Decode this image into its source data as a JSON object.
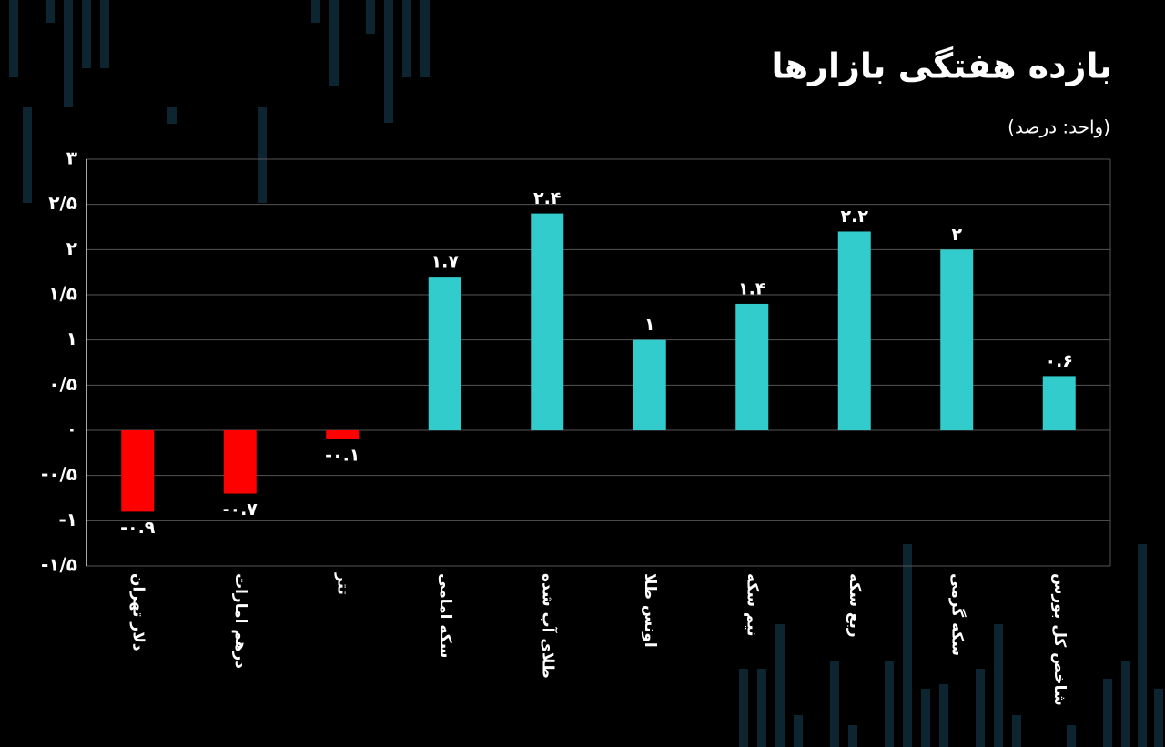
{
  "chart_data": {
    "type": "bar",
    "title": "بازده هفتگی بازارها",
    "subtitle": "(واحد: درصد)",
    "categories": [
      "دلار تهران",
      "درهم امارات",
      "تتر",
      "سکه امامی",
      "طلای آب شده",
      "اونس طلا",
      "نیم سکه",
      "ربع سکه",
      "سکه گرمی",
      "شاخص کل بورس"
    ],
    "values": [
      -0.9,
      -0.7,
      -0.1,
      1.7,
      2.4,
      1,
      1.4,
      2.2,
      2,
      0.6
    ],
    "value_labels": [
      "-۰.۹",
      "-۰.۷",
      "-۰.۱",
      "۱.۷",
      "۲.۴",
      "۱",
      "۱.۴",
      "۲.۲",
      "۲",
      "۰.۶"
    ],
    "colors": [
      "#ff0000",
      "#ff0000",
      "#ff0000",
      "#33cccc",
      "#33cccc",
      "#33cccc",
      "#33cccc",
      "#33cccc",
      "#33cccc",
      "#33cccc"
    ],
    "ylim": [
      -1.5,
      3
    ],
    "yticks": [
      {
        "value": -1.5,
        "label": "-۱/۵"
      },
      {
        "value": -1,
        "label": "-۱"
      },
      {
        "value": -0.5,
        "label": "-۰/۵"
      },
      {
        "value": 0,
        "label": "۰"
      },
      {
        "value": 0.5,
        "label": "۰/۵"
      },
      {
        "value": 1,
        "label": "۱"
      },
      {
        "value": 1.5,
        "label": "۱/۵"
      },
      {
        "value": 2,
        "label": "۲"
      },
      {
        "value": 2.5,
        "label": "۲/۵"
      },
      {
        "value": 3,
        "label": "۳"
      }
    ],
    "grid": true
  }
}
